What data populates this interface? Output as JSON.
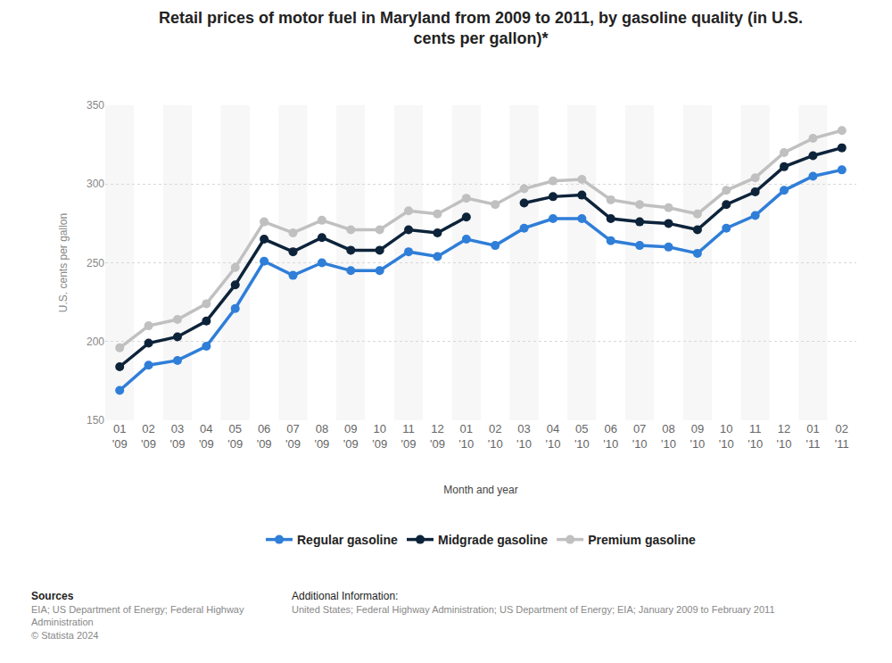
{
  "chart_data": {
    "type": "line",
    "title": "Retail prices of motor fuel in Maryland from 2009 to 2011, by gasoline quality (in U.S.\ncents per gallon)*",
    "x_label": "Month and year",
    "y_label": "U.S. cents per gallon",
    "categories": [
      "01\n'09",
      "02\n'09",
      "03\n'09",
      "04\n'09",
      "05\n'09",
      "06\n'09",
      "07\n'09",
      "08\n'09",
      "09\n'09",
      "10\n'09",
      "11\n'09",
      "12\n'09",
      "01\n'10",
      "02\n'10",
      "03\n'10",
      "04\n'10",
      "05\n'10",
      "06\n'10",
      "07\n'10",
      "08\n'10",
      "09\n'10",
      "10\n'10",
      "11\n'10",
      "12\n'10",
      "01\n'11",
      "02\n'11"
    ],
    "series": [
      {
        "name": "Regular gasoline",
        "color": "#2f7ed8",
        "marker": "circle",
        "values": [
          169,
          185,
          188,
          197,
          221,
          251,
          242,
          250,
          245,
          245,
          257,
          254,
          265,
          261,
          272,
          278,
          278,
          264,
          261,
          260,
          256,
          272,
          280,
          296,
          305,
          309
        ]
      },
      {
        "name": "Midgrade gasoline",
        "color": "#0d233a",
        "marker": "circle",
        "values": [
          184,
          199,
          203,
          213,
          236,
          265,
          257,
          266,
          258,
          258,
          271,
          269,
          279,
          null,
          288,
          292,
          293,
          278,
          276,
          275,
          271,
          287,
          295,
          311,
          318,
          323
        ]
      },
      {
        "name": "Premium gasoline",
        "color": "#c0c0c0",
        "marker": "circle",
        "values": [
          196,
          210,
          214,
          224,
          247,
          276,
          269,
          277,
          271,
          271,
          283,
          281,
          291,
          287,
          297,
          302,
          303,
          290,
          287,
          285,
          281,
          296,
          304,
          320,
          329,
          334
        ]
      }
    ],
    "ylim": [
      150,
      350
    ],
    "yticks": [
      150,
      200,
      250,
      300,
      350
    ],
    "grid": true,
    "legend": "bottom",
    "sources_title": "Sources",
    "sources": "EIA; US Department of Energy; Federal Highway\nAdministration",
    "copyright": "© Statista 2024",
    "additional_info_title": "Additional Information:",
    "additional_info": "United States; Federal Highway Administration; US Department of Energy; EIA; January 2009 to February 2011"
  }
}
